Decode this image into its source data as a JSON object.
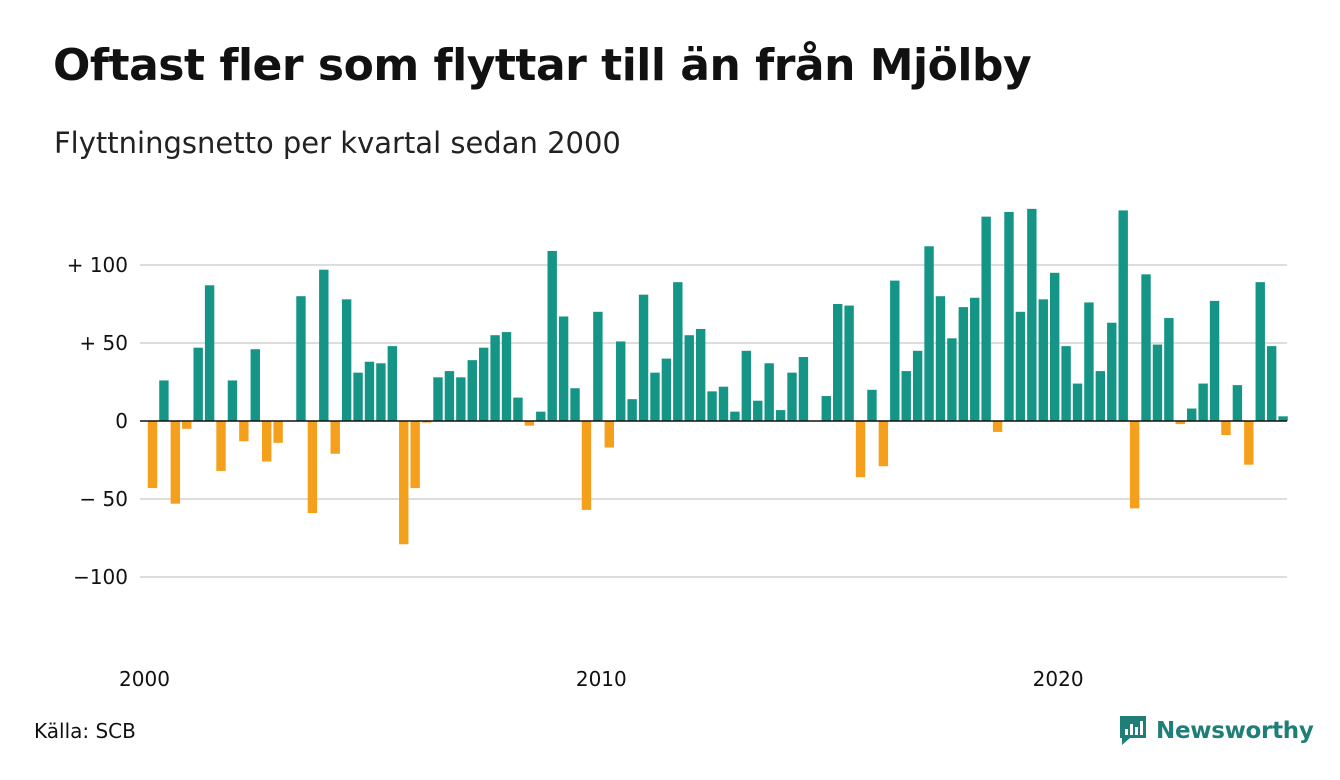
{
  "title": "Oftast fler som flyttar till än från Mjölby",
  "subtitle": "Flyttningsnetto per kvartal sedan 2000",
  "source": "Källa: SCB",
  "brand": {
    "name": "Newsworthy",
    "icon": "newsworthy-logo-icon"
  },
  "colors": {
    "positive": "#159586",
    "negative": "#f5a01c",
    "grid": "#dddddd",
    "zero": "#111111"
  },
  "chart_data": {
    "type": "bar",
    "title": "Oftast fler som flyttar till än från Mjölby",
    "subtitle": "Flyttningsnetto per kvartal sedan 2000",
    "ylim": [
      -120,
      140
    ],
    "yticks": [
      {
        "value": 100,
        "label": "+ 100"
      },
      {
        "value": 50,
        "label": "+  50"
      },
      {
        "value": 0,
        "label": "0"
      },
      {
        "value": -50,
        "label": "− 50"
      },
      {
        "value": -100,
        "label": "−100"
      }
    ],
    "xticks": [
      {
        "index": 0,
        "label": "2000"
      },
      {
        "index": 40,
        "label": "2010"
      },
      {
        "index": 80,
        "label": "2020"
      }
    ],
    "grid": true,
    "start_period": "2000 Q1",
    "values": [
      -43,
      26,
      -53,
      -5,
      47,
      87,
      -32,
      26,
      -13,
      46,
      -26,
      -14,
      0,
      80,
      -59,
      97,
      -21,
      78,
      31,
      38,
      37,
      48,
      -79,
      -43,
      -1,
      28,
      32,
      28,
      39,
      47,
      55,
      57,
      15,
      -3,
      6,
      109,
      67,
      21,
      -57,
      70,
      -17,
      51,
      14,
      81,
      31,
      40,
      89,
      55,
      59,
      19,
      22,
      6,
      45,
      13,
      37,
      7,
      31,
      41,
      0,
      16,
      75,
      74,
      -36,
      20,
      -29,
      90,
      32,
      45,
      112,
      80,
      53,
      73,
      79,
      131,
      -7,
      134,
      70,
      136,
      78,
      95,
      48,
      24,
      76,
      32,
      63,
      135,
      -56,
      94,
      49,
      66,
      -2,
      8,
      24,
      77,
      -9,
      23,
      -28,
      89,
      48,
      3
    ]
  }
}
